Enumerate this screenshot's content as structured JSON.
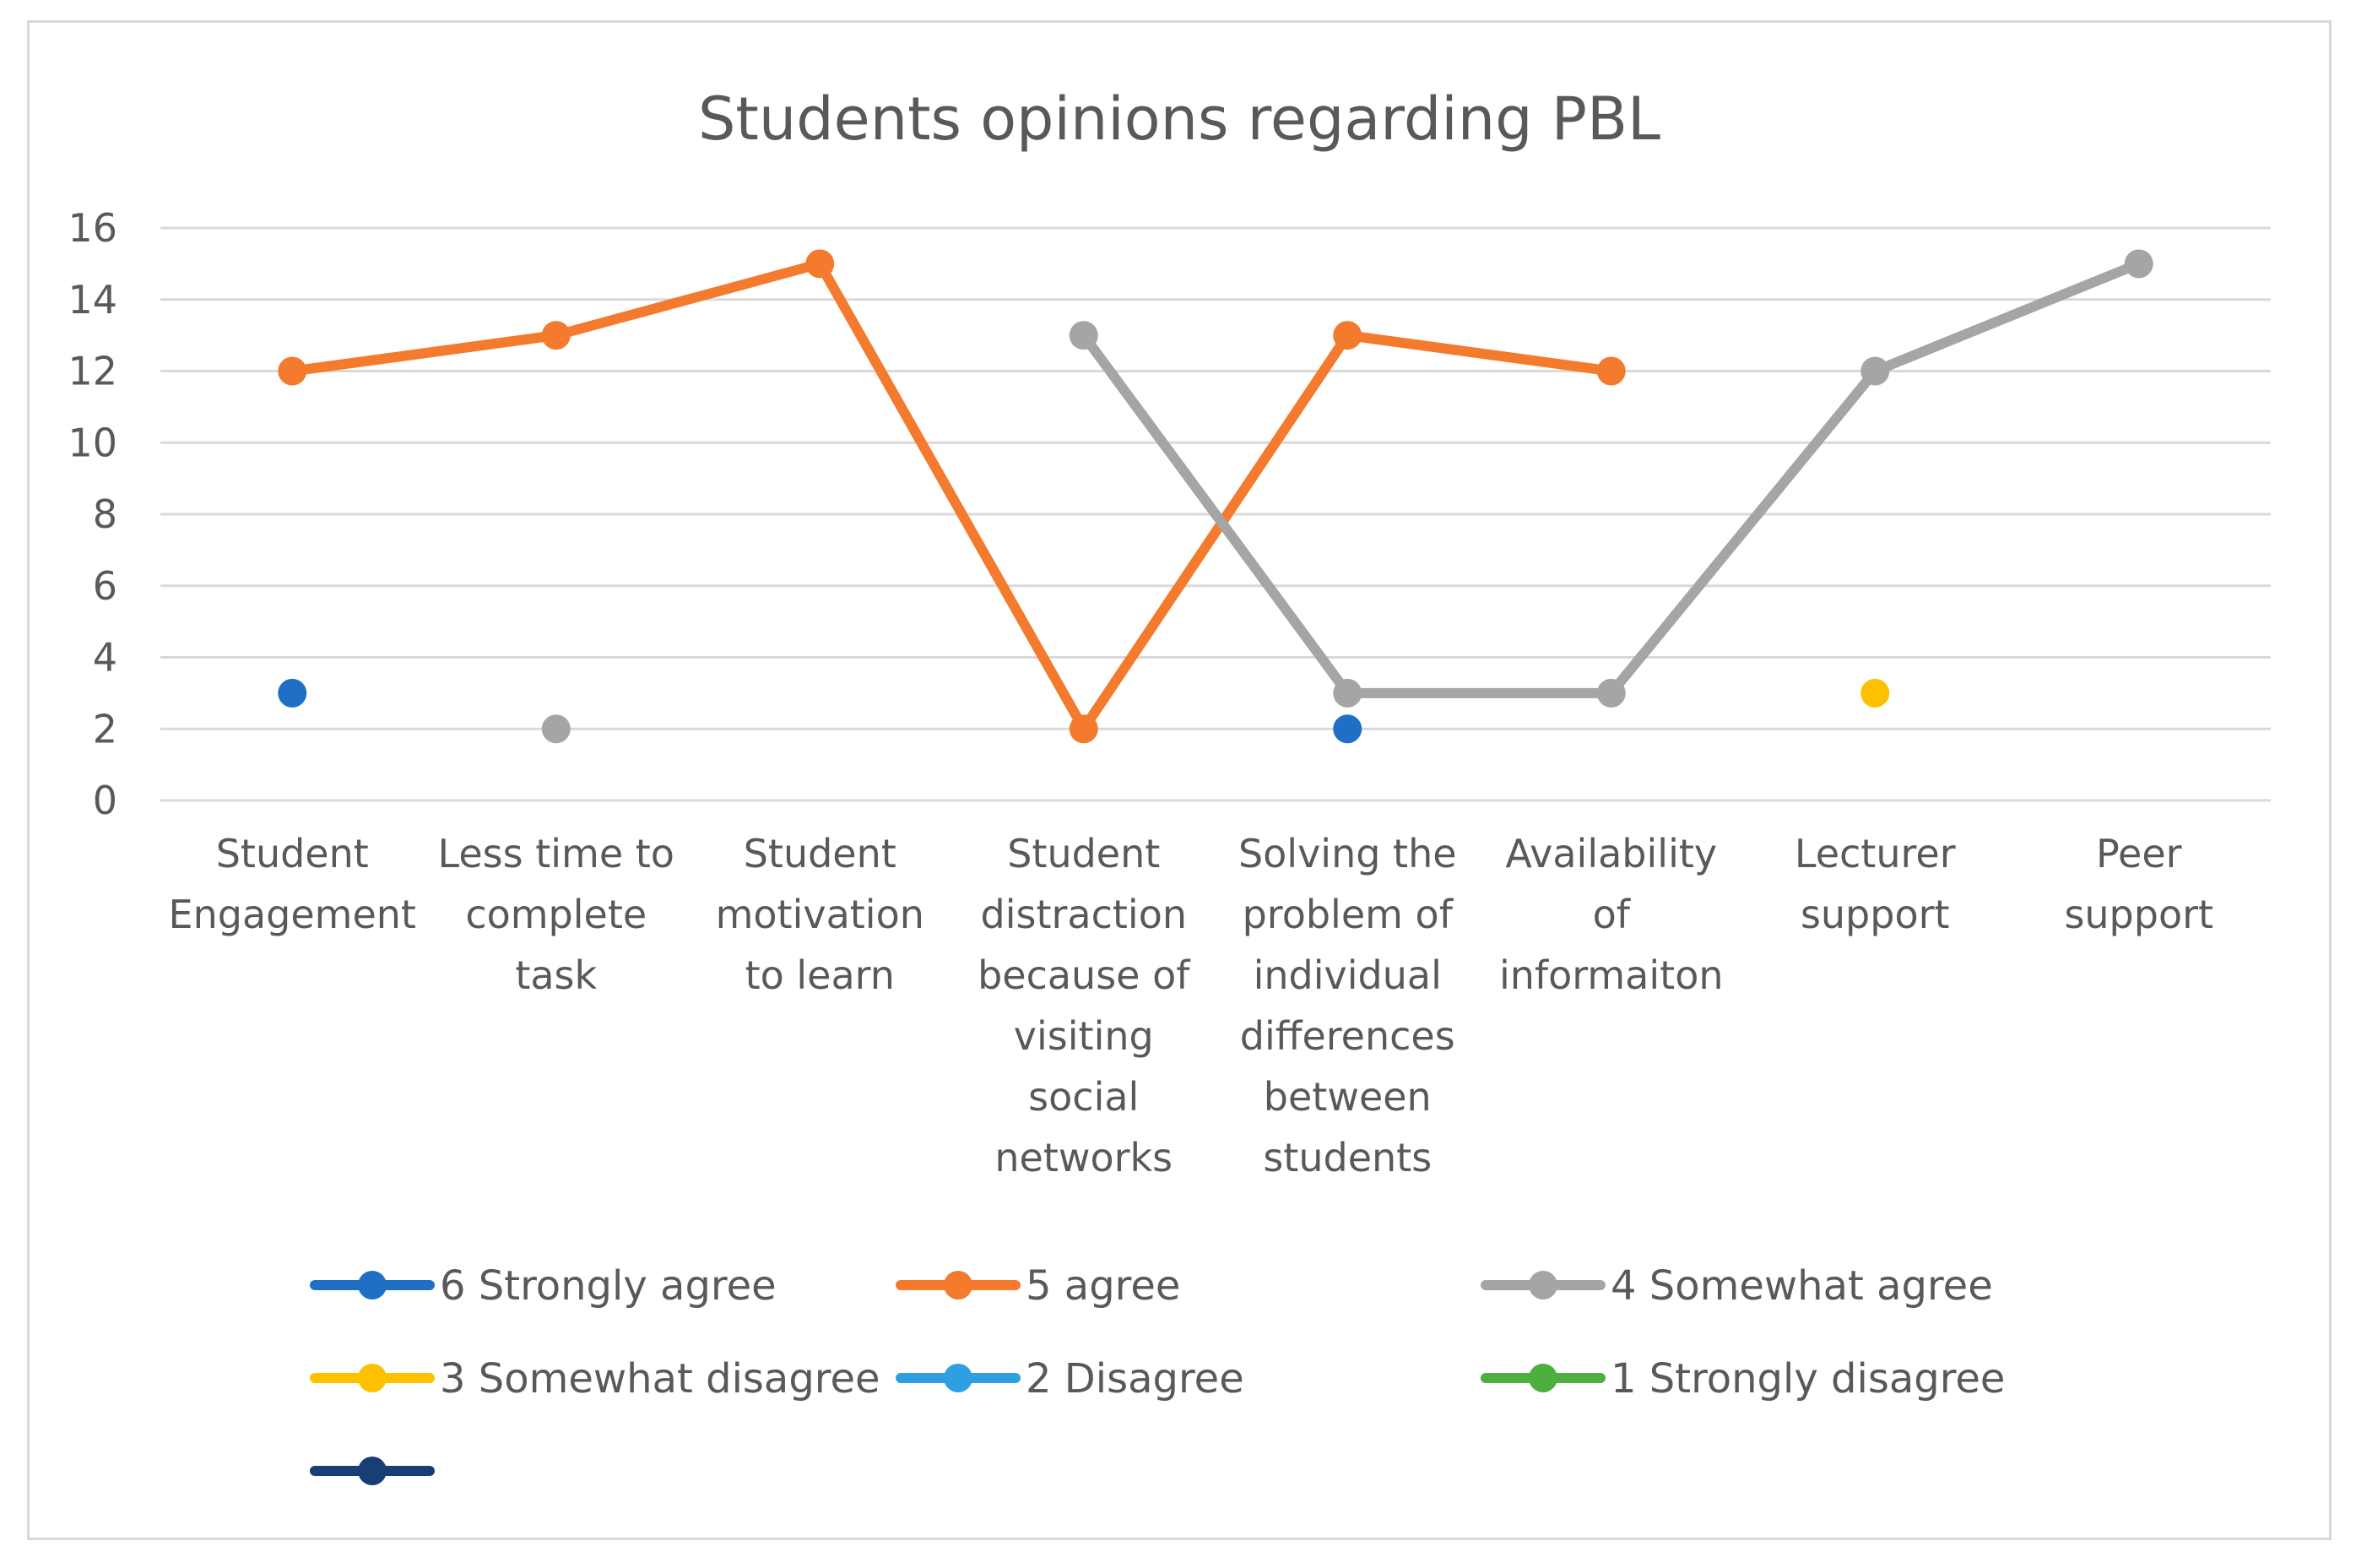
{
  "chart_data": {
    "type": "line",
    "title": "Students opinions regarding PBL",
    "xlabel": "",
    "ylabel": "",
    "ylim": [
      0,
      16
    ],
    "yticks": [
      0,
      2,
      4,
      6,
      8,
      10,
      12,
      14,
      16
    ],
    "grid": true,
    "legend_position": "bottom",
    "categories": [
      [
        "Student",
        "Engagement"
      ],
      [
        "Less time to",
        "complete",
        "task"
      ],
      [
        "Student",
        "motivation",
        "to learn"
      ],
      [
        "Student",
        "distraction",
        "because of",
        "visiting",
        "social",
        "networks"
      ],
      [
        "Solving the",
        "problem of",
        "individual",
        "differences",
        "between",
        "students"
      ],
      [
        "Availability",
        "of",
        "informaiton"
      ],
      [
        "Lecturer",
        "support"
      ],
      [
        "Peer",
        "support"
      ]
    ],
    "series": [
      {
        "name": "6 Strongly agree",
        "color": "#1f6fc5",
        "values": [
          3,
          null,
          null,
          null,
          2,
          null,
          null,
          null
        ]
      },
      {
        "name": "5 agree",
        "color": "#f47a2e",
        "values": [
          12,
          13,
          15,
          2,
          13,
          12,
          null,
          null
        ]
      },
      {
        "name": "4 Somewhat agree",
        "color": "#a5a5a5",
        "values": [
          null,
          2,
          null,
          13,
          3,
          3,
          12,
          15
        ]
      },
      {
        "name": "3 Somewhat disagree",
        "color": "#ffc000",
        "values": [
          null,
          null,
          null,
          null,
          null,
          null,
          3,
          null
        ]
      },
      {
        "name": "2 Disagree",
        "color": "#2e9fe0",
        "values": [
          null,
          null,
          null,
          null,
          null,
          null,
          null,
          null
        ]
      },
      {
        "name": "1 Strongly disagree",
        "color": "#4caf3e",
        "values": [
          null,
          null,
          null,
          null,
          null,
          null,
          null,
          null
        ]
      },
      {
        "name": "",
        "color": "#173f75",
        "values": [
          null,
          null,
          null,
          null,
          null,
          null,
          null,
          null
        ]
      }
    ]
  }
}
